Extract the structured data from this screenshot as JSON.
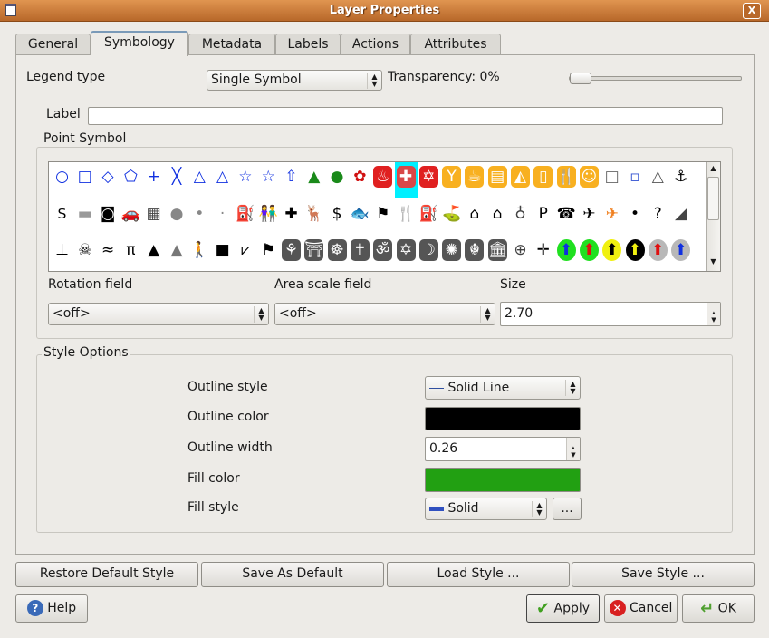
{
  "window": {
    "title": "Layer Properties",
    "close_label": "X"
  },
  "tabs": [
    {
      "label": "General"
    },
    {
      "label": "Symbology"
    },
    {
      "label": "Metadata"
    },
    {
      "label": "Labels"
    },
    {
      "label": "Actions"
    },
    {
      "label": "Attributes"
    }
  ],
  "active_tab": "Symbology",
  "legend": {
    "label": "Legend type",
    "value": "Single Symbol",
    "transparency_label": "Transparency: 0%",
    "transparency": 0
  },
  "label_field": {
    "label": "Label",
    "value": ""
  },
  "point_symbol": {
    "title": "Point Symbol",
    "selected_index": 15,
    "symbols": [
      {
        "icon": "circle-icon",
        "g": "○",
        "c": "#1030e0"
      },
      {
        "icon": "square-icon",
        "g": "□",
        "c": "#1030e0"
      },
      {
        "icon": "diamond-icon",
        "g": "◇",
        "c": "#1030e0"
      },
      {
        "icon": "pentagon-icon",
        "g": "⬠",
        "c": "#1030e0"
      },
      {
        "icon": "cross-icon",
        "g": "+",
        "c": "#1030e0"
      },
      {
        "icon": "x-icon",
        "g": "╳",
        "c": "#1030e0"
      },
      {
        "icon": "triangle-icon",
        "g": "△",
        "c": "#1030e0"
      },
      {
        "icon": "small-triangle-icon",
        "g": "△",
        "c": "#1030e0"
      },
      {
        "icon": "star-icon",
        "g": "☆",
        "c": "#1030e0"
      },
      {
        "icon": "small-star-icon",
        "g": "☆",
        "c": "#1030e0"
      },
      {
        "icon": "arrow-up-icon",
        "g": "⇧",
        "c": "#1030e0"
      },
      {
        "icon": "conifer-icon",
        "g": "▲",
        "c": "#1a8a1a"
      },
      {
        "icon": "tree-icon",
        "g": "●",
        "c": "#1a8a1a"
      },
      {
        "icon": "flower-icon",
        "g": "✿",
        "c": "#d01010"
      },
      {
        "icon": "fire-icon",
        "g": "♨",
        "c": "#fff",
        "b": "#e02020"
      },
      {
        "icon": "hospital-icon",
        "g": "✚",
        "c": "#fff",
        "b": "#d84848"
      },
      {
        "icon": "star-of-life-icon",
        "g": "✡",
        "c": "#fff",
        "b": "#e02020"
      },
      {
        "icon": "cocktail-icon",
        "g": "Y",
        "c": "#fff",
        "b": "#f8b020"
      },
      {
        "icon": "cafe-icon",
        "g": "☕",
        "c": "#fff",
        "b": "#f8b020"
      },
      {
        "icon": "cinema-icon",
        "g": "▤",
        "c": "#fff",
        "b": "#f8b020"
      },
      {
        "icon": "pizza-icon",
        "g": "◭",
        "c": "#fff",
        "b": "#f8b020"
      },
      {
        "icon": "pub-icon",
        "g": "▯",
        "c": "#fff",
        "b": "#f8b020"
      },
      {
        "icon": "restaurant-icon",
        "g": "🍴",
        "c": "#fff",
        "b": "#f8b020"
      },
      {
        "icon": "theatre-icon",
        "g": "☺",
        "c": "#fff",
        "b": "#f8b020"
      },
      {
        "icon": "empty-square-icon",
        "g": "□",
        "c": "#666"
      },
      {
        "icon": "small-square-icon",
        "g": "▫",
        "c": "#3050d0"
      },
      {
        "icon": "outline-triangle-icon",
        "g": "△",
        "c": "#555"
      },
      {
        "icon": "anchor-icon",
        "g": "⚓",
        "c": "#000"
      },
      {
        "icon": "dollar-icon",
        "g": "$",
        "c": "#000"
      },
      {
        "icon": "bath-icon",
        "g": "▬",
        "c": "#999"
      },
      {
        "icon": "camera-icon",
        "g": "◙",
        "c": "#000"
      },
      {
        "icon": "car-icon",
        "g": "🚗",
        "c": "#000"
      },
      {
        "icon": "building-icon",
        "g": "▦",
        "c": "#444"
      },
      {
        "icon": "dot-large-icon",
        "g": "●",
        "c": "#888"
      },
      {
        "icon": "dot-medium-icon",
        "g": "•",
        "c": "#888"
      },
      {
        "icon": "dot-small-icon",
        "g": "·",
        "c": "#888"
      },
      {
        "icon": "fuel-icon",
        "g": "⛽",
        "c": "#000"
      },
      {
        "icon": "toilets-icon",
        "g": "👫",
        "c": "#000"
      },
      {
        "icon": "first-aid-icon",
        "g": "✚",
        "c": "#000"
      },
      {
        "icon": "deer-icon",
        "g": "🦌",
        "c": "#000"
      },
      {
        "icon": "bank-dollar-icon",
        "g": "$",
        "c": "#000"
      },
      {
        "icon": "fish-icon",
        "g": "🐟",
        "c": "#777"
      },
      {
        "icon": "golf-flag-icon",
        "g": "⚑",
        "c": "#000"
      },
      {
        "icon": "fork-knife-icon",
        "g": "🍴",
        "c": "#000"
      },
      {
        "icon": "fuel-pump-icon",
        "g": "⛽",
        "c": "#000"
      },
      {
        "icon": "golf-icon",
        "g": "⛳",
        "c": "#000"
      },
      {
        "icon": "shelter-icon",
        "g": "⌂",
        "c": "#000"
      },
      {
        "icon": "house-icon",
        "g": "⌂",
        "c": "#000"
      },
      {
        "icon": "balloon-icon",
        "g": "♁",
        "c": "#444"
      },
      {
        "icon": "parking-icon",
        "g": "P",
        "c": "#000"
      },
      {
        "icon": "telephone-icon",
        "g": "☎",
        "c": "#000"
      },
      {
        "icon": "airport-icon",
        "g": "✈",
        "c": "#000"
      },
      {
        "icon": "airfield-icon",
        "g": "✈",
        "c": "#f08020"
      },
      {
        "icon": "dot-icon",
        "g": "•",
        "c": "#000"
      },
      {
        "icon": "question-icon",
        "g": "?",
        "c": "#000"
      },
      {
        "icon": "slipway-icon",
        "g": "◢",
        "c": "#444"
      },
      {
        "icon": "waterski-icon",
        "g": "⊥",
        "c": "#000"
      },
      {
        "icon": "danger-icon",
        "g": "☠",
        "c": "#000"
      },
      {
        "icon": "swimming-icon",
        "g": "≈",
        "c": "#000"
      },
      {
        "icon": "picnic-icon",
        "g": "π",
        "c": "#000"
      },
      {
        "icon": "tent-icon",
        "g": "▲",
        "c": "#000"
      },
      {
        "icon": "pine-icon",
        "g": "▲",
        "c": "#777"
      },
      {
        "icon": "hiker-icon",
        "g": "🚶",
        "c": "#000"
      },
      {
        "icon": "black-square-icon",
        "g": "■",
        "c": "#000"
      },
      {
        "icon": "viewpoint-icon",
        "g": "⩗",
        "c": "#000"
      },
      {
        "icon": "flag-icon",
        "g": "⚑",
        "c": "#000"
      },
      {
        "icon": "buddhist-icon",
        "g": "⚘",
        "c": "#fff",
        "b": "#555"
      },
      {
        "icon": "shinto-icon",
        "g": "⛩",
        "c": "#fff",
        "b": "#555"
      },
      {
        "icon": "wheel-icon",
        "g": "☸",
        "c": "#fff",
        "b": "#555"
      },
      {
        "icon": "christian-icon",
        "g": "✝",
        "c": "#fff",
        "b": "#555"
      },
      {
        "icon": "hindu-icon",
        "g": "ॐ",
        "c": "#fff",
        "b": "#555"
      },
      {
        "icon": "jewish-icon",
        "g": "✡",
        "c": "#fff",
        "b": "#555"
      },
      {
        "icon": "islamic-icon",
        "g": "☽",
        "c": "#fff",
        "b": "#555"
      },
      {
        "icon": "bahai-icon",
        "g": "✺",
        "c": "#fff",
        "b": "#555"
      },
      {
        "icon": "sikh-icon",
        "g": "☬",
        "c": "#fff",
        "b": "#555"
      },
      {
        "icon": "museum-icon",
        "g": "🏛",
        "c": "#fff",
        "b": "#555"
      },
      {
        "icon": "compass-icon",
        "g": "⊕",
        "c": "#444"
      },
      {
        "icon": "north-arrow-icon",
        "g": "✛",
        "c": "#000"
      },
      {
        "icon": "arrow-green-blue-icon",
        "g": "⬆",
        "c": "#1030e0",
        "b": "#20e020"
      },
      {
        "icon": "arrow-green-red-icon",
        "g": "⬆",
        "c": "#e01010",
        "b": "#20e020"
      },
      {
        "icon": "arrow-yellow-black-icon",
        "g": "⬆",
        "c": "#000",
        "b": "#f0f010"
      },
      {
        "icon": "arrow-black-yellow-icon",
        "g": "⬆",
        "c": "#f0f010",
        "b": "#000"
      },
      {
        "icon": "arrow-grey-red-icon",
        "g": "⬆",
        "c": "#e01010",
        "b": "#b8b8b8"
      },
      {
        "icon": "arrow-grey-blue-icon",
        "g": "⬆",
        "c": "#1030e0",
        "b": "#b8b8b8"
      }
    ],
    "rotation_label": "Rotation field",
    "rotation_value": "<off>",
    "area_label": "Area scale field",
    "area_value": "<off>",
    "size_label": "Size",
    "size_value": "2.70"
  },
  "style": {
    "title": "Style Options",
    "outline_style_label": "Outline style",
    "outline_style_value": "Solid Line",
    "outline_color_label": "Outline color",
    "outline_color": "#000000",
    "outline_width_label": "Outline width",
    "outline_width_value": "0.26",
    "fill_color_label": "Fill color",
    "fill_color": "#22a012",
    "fill_style_label": "Fill style",
    "fill_style_value": "Solid",
    "more_label": "..."
  },
  "buttons": {
    "restore": "Restore Default Style",
    "save_default": "Save As Default",
    "load": "Load Style ...",
    "save": "Save Style ...",
    "help": "Help",
    "apply": "Apply",
    "cancel": "Cancel",
    "ok": "OK"
  }
}
